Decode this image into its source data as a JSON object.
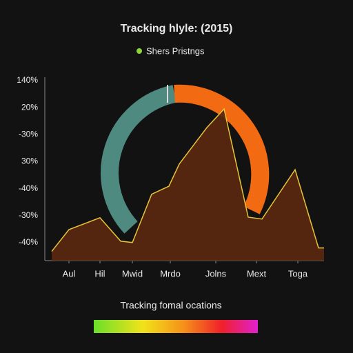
{
  "chart_data": {
    "type": "area",
    "title": "Tracking hlyle: (2015)",
    "series": [
      {
        "name": "Shers Pristngs",
        "color": "#8bd43a",
        "fill": "#5a2810",
        "line_color": "#e8c43a",
        "values": [
          -0.33,
          0.48,
          0.92,
          0.05,
          0,
          1.79,
          2.09,
          2.91,
          4.26,
          4.95,
          0.94,
          0.87,
          2.7,
          -0.2,
          -0.2
        ]
      }
    ],
    "x": [
      10,
      35,
      80,
      110,
      127,
      155,
      180,
      195,
      235,
      260,
      295,
      315,
      363,
      397,
      405
    ],
    "xlim": [
      0,
      405
    ],
    "xticks": [
      {
        "value": 35,
        "label": "Aul"
      },
      {
        "value": 80,
        "label": "Hil"
      },
      {
        "value": 127,
        "label": "Mwid"
      },
      {
        "value": 182,
        "label": "Mrdo"
      },
      {
        "value": 248,
        "label": "Jolns"
      },
      {
        "value": 307,
        "label": "Mext"
      },
      {
        "value": 367,
        "label": "Toga"
      }
    ],
    "ylim": [
      -0.67,
      6
    ],
    "ylabels": [
      "140%",
      "20%",
      "-30%",
      "30%",
      "-40%",
      "-30%",
      "-40%"
    ],
    "caption": "Tracking fomal ocations"
  }
}
